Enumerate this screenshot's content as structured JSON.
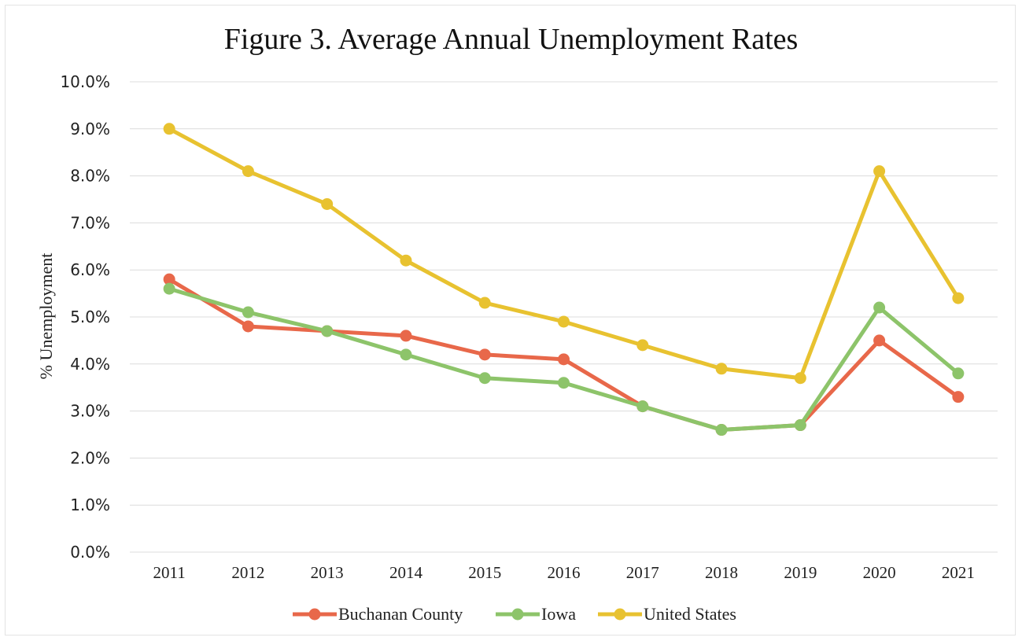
{
  "chart_data": {
    "type": "line",
    "title": "Figure 3. Average Annual Unemployment Rates",
    "xlabel": "",
    "ylabel": "% Unemployment",
    "x": [
      "2011",
      "2012",
      "2013",
      "2014",
      "2015",
      "2016",
      "2017",
      "2018",
      "2019",
      "2020",
      "2021"
    ],
    "ylim": [
      0,
      10
    ],
    "y_ticks": [
      "0.0%",
      "1.0%",
      "2.0%",
      "3.0%",
      "4.0%",
      "5.0%",
      "6.0%",
      "7.0%",
      "8.0%",
      "9.0%",
      "10.0%"
    ],
    "grid": true,
    "legend_position": "bottom",
    "series": [
      {
        "name": "Buchanan County",
        "color": "#e8684a",
        "values": [
          5.8,
          4.8,
          4.7,
          4.6,
          4.2,
          4.1,
          3.1,
          2.6,
          2.7,
          4.5,
          3.3
        ]
      },
      {
        "name": "Iowa",
        "color": "#8dc46a",
        "values": [
          5.6,
          5.1,
          4.7,
          4.2,
          3.7,
          3.6,
          3.1,
          2.6,
          2.7,
          5.2,
          3.8
        ]
      },
      {
        "name": "United States",
        "color": "#e8c230",
        "values": [
          9.0,
          8.1,
          7.4,
          6.2,
          5.3,
          4.9,
          4.4,
          3.9,
          3.7,
          8.1,
          5.4
        ]
      }
    ]
  }
}
